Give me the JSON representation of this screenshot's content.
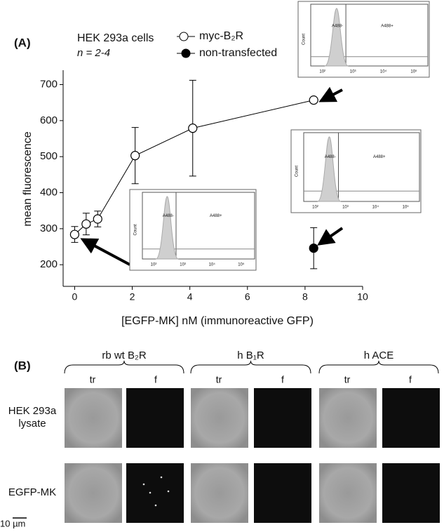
{
  "chart_data": {
    "type": "line",
    "panel_label": "(A)",
    "annotations": [
      "HEK 293a cells",
      "n = 2-4"
    ],
    "xlabel": "[EGFP-MK]   nM   (immunoreactive GFP)",
    "ylabel": "mean fluorescence",
    "xlim": [
      -0.4,
      10
    ],
    "ylim": [
      140,
      740
    ],
    "xticks": [
      0,
      2,
      4,
      6,
      8,
      10
    ],
    "yticks": [
      200,
      300,
      400,
      500,
      600,
      700
    ],
    "series": [
      {
        "name": "myc-B₂R",
        "color": "#ffffff",
        "x": [
          0,
          0.4,
          0.8,
          2.1,
          4.1,
          8.3
        ],
        "values": [
          284,
          313,
          327,
          503,
          579,
          657
        ],
        "errors": [
          22,
          30,
          22,
          78,
          133,
          5
        ]
      },
      {
        "name": "non-transfected",
        "color": "#000000",
        "x": [
          8.3
        ],
        "values": [
          246
        ],
        "errors": [
          57
        ]
      }
    ],
    "insets": [
      {
        "left_label": "A488-",
        "right_label": "A488+",
        "ylabel": "Count",
        "xtick_labels": [
          "10²",
          "10³",
          "10⁴",
          "10⁵"
        ]
      },
      {
        "left_label": "A488-",
        "right_label": "A488+",
        "ylabel": "Count",
        "xtick_labels": [
          "10²",
          "10³",
          "10⁴",
          "10⁵"
        ]
      },
      {
        "left_label": "A488-",
        "right_label": "A488+",
        "ylabel": "Count",
        "xtick_labels": [
          "10²",
          "10³",
          "10⁴",
          "10⁵"
        ]
      }
    ]
  },
  "panel_b": {
    "label": "(B)",
    "groups": [
      "rb wt B₂R",
      "h B₁R",
      "h ACE"
    ],
    "subcolumns": [
      "tr",
      "f"
    ],
    "rows": [
      "HEK 293a\nlysate",
      "EGFP-MK"
    ],
    "scale_bar": "10 µm"
  }
}
